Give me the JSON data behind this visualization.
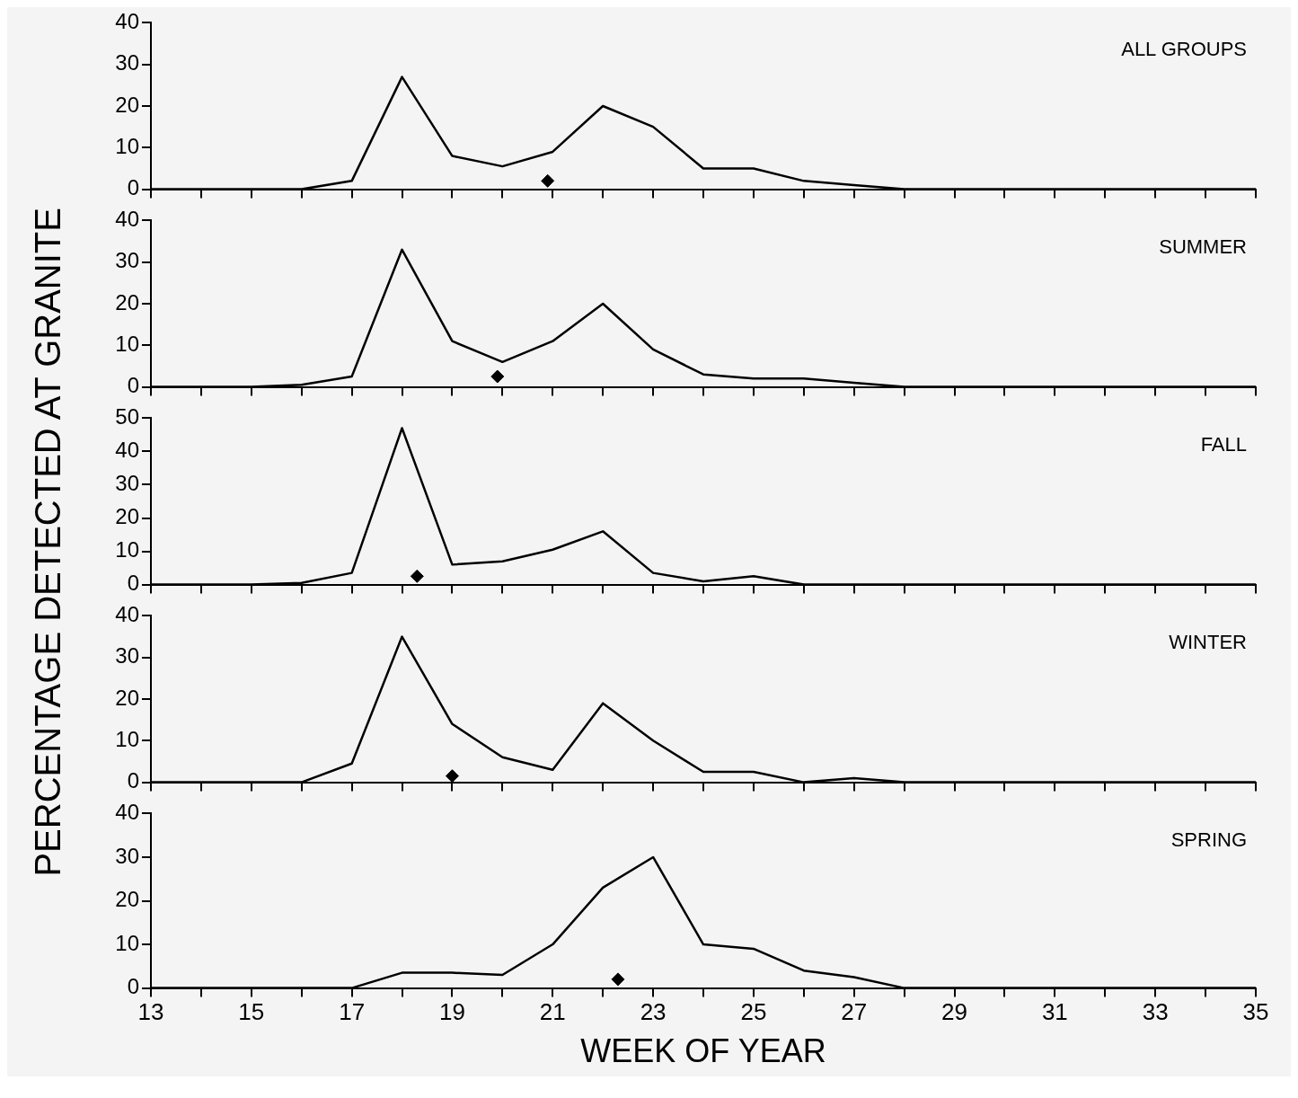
{
  "chart_data": [
    {
      "type": "line",
      "x": [
        13,
        14,
        15,
        16,
        17,
        18,
        19,
        20,
        21,
        22,
        23,
        24,
        25,
        26,
        27,
        28,
        29,
        30,
        31,
        32,
        33,
        34,
        35
      ],
      "xlim": [
        13,
        35
      ],
      "xticks": [
        13,
        {
          "value": 14,
          "label": null
        },
        15,
        {
          "value": 16,
          "label": null
        },
        17,
        {
          "value": 18,
          "label": null
        },
        19,
        {
          "value": 20,
          "label": null
        },
        21,
        {
          "value": 22,
          "label": null
        },
        23,
        {
          "value": 24,
          "label": null
        },
        25,
        {
          "value": 26,
          "label": null
        },
        27,
        {
          "value": 28,
          "label": null
        },
        29,
        {
          "value": 30,
          "label": null
        },
        31,
        {
          "value": 32,
          "label": null
        },
        33,
        {
          "value": 34,
          "label": null
        },
        35
      ],
      "ylim": [
        0,
        40
      ],
      "yticks": [
        0,
        10,
        20,
        30,
        40
      ],
      "tick_labels": "y",
      "marker": "none",
      "legend": false,
      "grid": false,
      "series": [
        {
          "name": "ALL GROUPS",
          "color": "#000000",
          "values": [
            0,
            0,
            0,
            0,
            2,
            27,
            8,
            5.5,
            9,
            20,
            15,
            5,
            5,
            2,
            1,
            0,
            0,
            0,
            0,
            0,
            0,
            0,
            0
          ]
        },
        {
          "type": "scatter",
          "marker": "diamond",
          "color": "#000000",
          "x": [
            20.9
          ],
          "values": [
            2
          ]
        }
      ]
    },
    {
      "type": "line",
      "x": [
        13,
        14,
        15,
        16,
        17,
        18,
        19,
        20,
        21,
        22,
        23,
        24,
        25,
        26,
        27,
        28,
        29,
        30,
        31,
        32,
        33,
        34,
        35
      ],
      "xlim": [
        13,
        35
      ],
      "xticks": [
        13,
        {
          "value": 14,
          "label": null
        },
        15,
        {
          "value": 16,
          "label": null
        },
        17,
        {
          "value": 18,
          "label": null
        },
        19,
        {
          "value": 20,
          "label": null
        },
        21,
        {
          "value": 22,
          "label": null
        },
        23,
        {
          "value": 24,
          "label": null
        },
        25,
        {
          "value": 26,
          "label": null
        },
        27,
        {
          "value": 28,
          "label": null
        },
        29,
        {
          "value": 30,
          "label": null
        },
        31,
        {
          "value": 32,
          "label": null
        },
        33,
        {
          "value": 34,
          "label": null
        },
        35
      ],
      "ylim": [
        0,
        40
      ],
      "yticks": [
        0,
        10,
        20,
        30,
        40
      ],
      "tick_labels": "y",
      "marker": "none",
      "legend": false,
      "grid": false,
      "series": [
        {
          "name": "SUMMER",
          "color": "#000000",
          "values": [
            0,
            0,
            0,
            0.5,
            2.5,
            33,
            11,
            6,
            11,
            20,
            9,
            3,
            2,
            2,
            1,
            0,
            0,
            0,
            0,
            0,
            0,
            0,
            0
          ]
        },
        {
          "type": "scatter",
          "marker": "diamond",
          "color": "#000000",
          "x": [
            19.9
          ],
          "values": [
            2.5
          ]
        }
      ]
    },
    {
      "type": "line",
      "ylabel": "PERCENTAGE DETECTED AT GRANITE",
      "x": [
        13,
        14,
        15,
        16,
        17,
        18,
        19,
        20,
        21,
        22,
        23,
        24,
        25,
        26,
        27,
        28,
        29,
        30,
        31,
        32,
        33,
        34,
        35
      ],
      "xlim": [
        13,
        35
      ],
      "xticks": [
        13,
        {
          "value": 14,
          "label": null
        },
        15,
        {
          "value": 16,
          "label": null
        },
        17,
        {
          "value": 18,
          "label": null
        },
        19,
        {
          "value": 20,
          "label": null
        },
        21,
        {
          "value": 22,
          "label": null
        },
        23,
        {
          "value": 24,
          "label": null
        },
        25,
        {
          "value": 26,
          "label": null
        },
        27,
        {
          "value": 28,
          "label": null
        },
        29,
        {
          "value": 30,
          "label": null
        },
        31,
        {
          "value": 32,
          "label": null
        },
        33,
        {
          "value": 34,
          "label": null
        },
        35
      ],
      "ylim": [
        0,
        50
      ],
      "yticks": [
        0,
        10,
        20,
        30,
        40,
        50
      ],
      "tick_labels": "y",
      "marker": "none",
      "legend": false,
      "grid": false,
      "series": [
        {
          "name": "FALL",
          "color": "#000000",
          "values": [
            0,
            0,
            0,
            0.5,
            3.5,
            47,
            6,
            7,
            10.5,
            16,
            3.5,
            1,
            2.5,
            0,
            0,
            0,
            0,
            0,
            0,
            0,
            0,
            0,
            0
          ]
        },
        {
          "type": "scatter",
          "marker": "diamond",
          "color": "#000000",
          "x": [
            18.3
          ],
          "values": [
            2.5
          ]
        }
      ]
    },
    {
      "type": "line",
      "x": [
        13,
        14,
        15,
        16,
        17,
        18,
        19,
        20,
        21,
        22,
        23,
        24,
        25,
        26,
        27,
        28,
        29,
        30,
        31,
        32,
        33,
        34,
        35
      ],
      "xlim": [
        13,
        35
      ],
      "xticks": [
        13,
        {
          "value": 14,
          "label": null
        },
        15,
        {
          "value": 16,
          "label": null
        },
        17,
        {
          "value": 18,
          "label": null
        },
        19,
        {
          "value": 20,
          "label": null
        },
        21,
        {
          "value": 22,
          "label": null
        },
        23,
        {
          "value": 24,
          "label": null
        },
        25,
        {
          "value": 26,
          "label": null
        },
        27,
        {
          "value": 28,
          "label": null
        },
        29,
        {
          "value": 30,
          "label": null
        },
        31,
        {
          "value": 32,
          "label": null
        },
        33,
        {
          "value": 34,
          "label": null
        },
        35
      ],
      "ylim": [
        0,
        40
      ],
      "yticks": [
        0,
        10,
        20,
        30,
        40
      ],
      "tick_labels": "y",
      "marker": "none",
      "legend": false,
      "grid": false,
      "series": [
        {
          "name": "WINTER",
          "color": "#000000",
          "values": [
            0,
            0,
            0,
            0,
            4.5,
            35,
            14,
            6,
            3,
            19,
            10,
            2.5,
            2.5,
            0,
            1,
            0,
            0,
            0,
            0,
            0,
            0,
            0,
            0
          ]
        },
        {
          "type": "scatter",
          "marker": "diamond",
          "color": "#000000",
          "x": [
            19
          ],
          "values": [
            1.5
          ]
        }
      ]
    },
    {
      "type": "line",
      "xlabel": "WEEK OF YEAR",
      "x": [
        13,
        14,
        15,
        16,
        17,
        18,
        19,
        20,
        21,
        22,
        23,
        24,
        25,
        26,
        27,
        28,
        29,
        30,
        31,
        32,
        33,
        34,
        35
      ],
      "xlim": [
        13,
        35
      ],
      "xticks": [
        13,
        {
          "value": 14,
          "label": null
        },
        15,
        {
          "value": 16,
          "label": null
        },
        17,
        {
          "value": 18,
          "label": null
        },
        19,
        {
          "value": 20,
          "label": null
        },
        21,
        {
          "value": 22,
          "label": null
        },
        23,
        {
          "value": 24,
          "label": null
        },
        25,
        {
          "value": 26,
          "label": null
        },
        27,
        {
          "value": 28,
          "label": null
        },
        29,
        {
          "value": 30,
          "label": null
        },
        31,
        {
          "value": 32,
          "label": null
        },
        33,
        {
          "value": 34,
          "label": null
        },
        35
      ],
      "ylim": [
        0,
        40
      ],
      "yticks": [
        0,
        10,
        20,
        30,
        40
      ],
      "marker": "none",
      "legend": false,
      "grid": false,
      "series": [
        {
          "name": "SPRING",
          "color": "#000000",
          "values": [
            0,
            0,
            0,
            0,
            0,
            3.5,
            3.5,
            3,
            10,
            23,
            30,
            10,
            9,
            4,
            2.5,
            0,
            0,
            0,
            0,
            0,
            0,
            0,
            0
          ]
        },
        {
          "type": "scatter",
          "marker": "diamond",
          "color": "#000000",
          "x": [
            22.3
          ],
          "values": [
            2
          ]
        }
      ]
    }
  ]
}
